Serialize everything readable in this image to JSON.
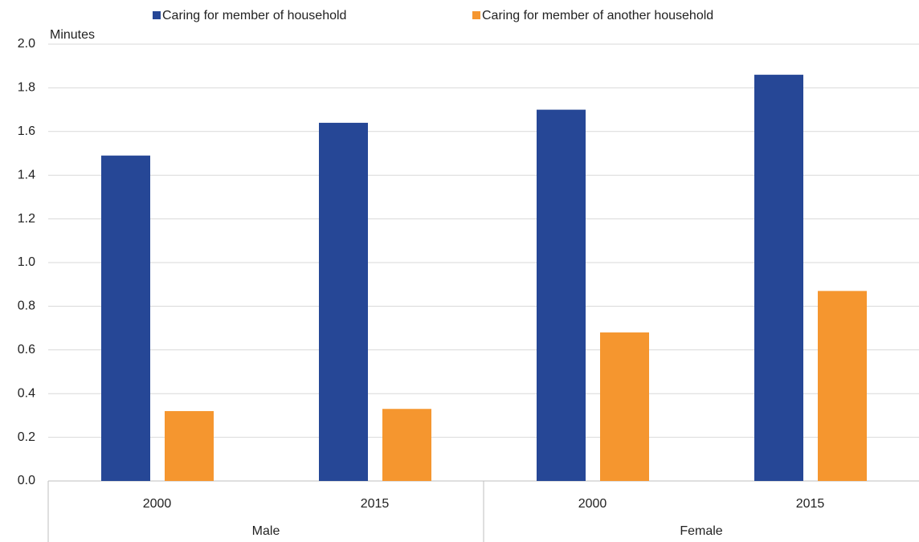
{
  "chart_data": {
    "type": "bar",
    "y_axis_label": "Minutes",
    "categories": [
      "2000",
      "2015",
      "2000",
      "2015"
    ],
    "groups": [
      "Male",
      "Female"
    ],
    "series": [
      {
        "name": "Caring for member of household",
        "color": "#264796",
        "values": [
          1.49,
          1.64,
          1.7,
          1.86
        ]
      },
      {
        "name": "Caring for member of another household",
        "color": "#f5962f",
        "values": [
          0.32,
          0.33,
          0.68,
          0.87
        ]
      }
    ],
    "ylim": [
      0,
      2
    ],
    "yticks": [
      {
        "value": 0,
        "label": "0.0"
      },
      0.2,
      0.4,
      0.6,
      0.8,
      {
        "value": 1,
        "label": "1.0"
      },
      1.2,
      1.4,
      1.6,
      1.8,
      {
        "value": 2,
        "label": "2.0"
      }
    ],
    "grid": true
  }
}
